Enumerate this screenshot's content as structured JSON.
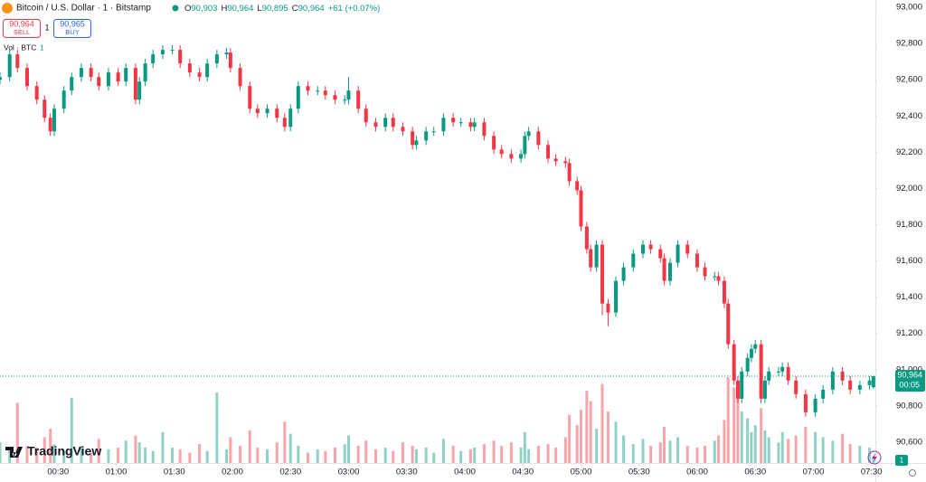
{
  "chart_data": {
    "type": "candlestick",
    "title": "Bitcoin / U.S. Dollar · 1 · Bitstamp",
    "ohlc_legend": [
      {
        "label": "O",
        "value": "90,903"
      },
      {
        "label": "H",
        "value": "90,964"
      },
      {
        "label": "L",
        "value": "90,895"
      },
      {
        "label": "C",
        "value": "90,964"
      }
    ],
    "change": "+61 (+0.07%)",
    "sell": {
      "price": "90,964",
      "label": "SELL"
    },
    "spread": "1",
    "buy": {
      "price": "90,965",
      "label": "BUY"
    },
    "volume_label": "Vol · BTC",
    "volume_legend_value": "1",
    "last_price": {
      "value": 90964,
      "label": "90,964"
    },
    "countdown": "00:05",
    "scale_badge": "1",
    "brand": "TradingView",
    "up_color": "#089981",
    "down_color": "#f23645",
    "xlim": [
      0,
      452
    ],
    "xticks": [
      {
        "value": 30,
        "label": "00:30"
      },
      {
        "value": 60,
        "label": "01:00"
      },
      {
        "value": 90,
        "label": "01:30"
      },
      {
        "value": 120,
        "label": "02:00"
      },
      {
        "value": 150,
        "label": "02:30"
      },
      {
        "value": 180,
        "label": "03:00"
      },
      {
        "value": 210,
        "label": "03:30"
      },
      {
        "value": 240,
        "label": "04:00"
      },
      {
        "value": 270,
        "label": "04:30"
      },
      {
        "value": 300,
        "label": "05:00"
      },
      {
        "value": 330,
        "label": "05:30"
      },
      {
        "value": 360,
        "label": "06:00"
      },
      {
        "value": 390,
        "label": "06:30"
      },
      {
        "value": 420,
        "label": "07:00"
      },
      {
        "value": 450,
        "label": "07:30"
      }
    ],
    "ylim": [
      90485,
      93040
    ],
    "yticks": [
      {
        "value": 90600,
        "label": "90,600"
      },
      {
        "value": 90800,
        "label": "90,800"
      },
      {
        "value": 91000,
        "label": "91,000"
      },
      {
        "value": 91200,
        "label": "91,200"
      },
      {
        "value": 91400,
        "label": "91,400"
      },
      {
        "value": 91600,
        "label": "91,600"
      },
      {
        "value": 91800,
        "label": "91,800"
      },
      {
        "value": 92000,
        "label": "92,000"
      },
      {
        "value": 92200,
        "label": "92,200"
      },
      {
        "value": 92400,
        "label": "92,400"
      },
      {
        "value": 92600,
        "label": "92,600"
      },
      {
        "value": 92800,
        "label": "92,800"
      },
      {
        "value": 93000,
        "label": "93,000"
      }
    ],
    "x": [
      0,
      5,
      9,
      14,
      19,
      23,
      26,
      28,
      33,
      37,
      42,
      47,
      51,
      56,
      61,
      65,
      70,
      72,
      75,
      79,
      84,
      89,
      93,
      98,
      103,
      107,
      112,
      117,
      119,
      124,
      129,
      133,
      138,
      143,
      147,
      150,
      154,
      159,
      164,
      168,
      173,
      178,
      180,
      185,
      189,
      194,
      199,
      203,
      208,
      213,
      215,
      220,
      224,
      229,
      234,
      238,
      243,
      245,
      250,
      255,
      259,
      264,
      269,
      271,
      273,
      278,
      283,
      287,
      292,
      294,
      298,
      300,
      303,
      305,
      308,
      311,
      314,
      318,
      322,
      327,
      332,
      336,
      341,
      343,
      346,
      350,
      355,
      360,
      364,
      369,
      371,
      374,
      376,
      379,
      381,
      383,
      386,
      388,
      390,
      393,
      395,
      397,
      402,
      404,
      407,
      411,
      416,
      421,
      425,
      430,
      435,
      439,
      444,
      449,
      451
    ],
    "open": [
      92600,
      92615,
      92740,
      92665,
      92565,
      92490,
      92390,
      92315,
      92440,
      92540,
      92615,
      92665,
      92615,
      92565,
      92640,
      92590,
      92665,
      92490,
      92590,
      92690,
      92740,
      92765,
      92765,
      92690,
      92640,
      92615,
      92690,
      92740,
      92750,
      92665,
      92565,
      92440,
      92415,
      92440,
      92390,
      92340,
      92440,
      92565,
      92540,
      92540,
      92515,
      92490,
      92490,
      92540,
      92440,
      92365,
      92340,
      92390,
      92340,
      92315,
      92240,
      92265,
      92315,
      92315,
      92390,
      92365,
      92365,
      92340,
      92365,
      92290,
      92215,
      92190,
      92165,
      92190,
      92290,
      92315,
      92240,
      92165,
      92150,
      92140,
      92040,
      91990,
      91790,
      91665,
      91565,
      91690,
      91365,
      91315,
      91490,
      91565,
      91640,
      91690,
      91665,
      91615,
      91490,
      91590,
      91690,
      91640,
      91565,
      91515,
      91515,
      91490,
      91365,
      91140,
      90940,
      90840,
      90990,
      91065,
      91115,
      91140,
      90840,
      90940,
      90990,
      90990,
      91015,
      90940,
      90865,
      90765,
      90840,
      90890,
      90990,
      90940,
      90890,
      90915,
      90903
    ],
    "high": [
      92640,
      92765,
      92765,
      92690,
      92590,
      92515,
      92415,
      92465,
      92565,
      92640,
      92690,
      92690,
      92640,
      92665,
      92665,
      92690,
      92690,
      92615,
      92715,
      92765,
      92790,
      92790,
      92790,
      92715,
      92665,
      92715,
      92765,
      92775,
      92775,
      92690,
      92590,
      92465,
      92465,
      92465,
      92415,
      92465,
      92590,
      92590,
      92565,
      92565,
      92540,
      92515,
      92615,
      92565,
      92465,
      92390,
      92415,
      92415,
      92365,
      92340,
      92290,
      92340,
      92340,
      92415,
      92415,
      92390,
      92390,
      92390,
      92390,
      92315,
      92240,
      92215,
      92215,
      92315,
      92340,
      92340,
      92265,
      92190,
      92175,
      92165,
      92065,
      92015,
      91815,
      91690,
      91715,
      91715,
      91390,
      91515,
      91590,
      91665,
      91715,
      91715,
      91690,
      91640,
      91615,
      91715,
      91715,
      91665,
      91590,
      91540,
      91540,
      91515,
      91390,
      91165,
      90965,
      91015,
      91090,
      91140,
      91165,
      91165,
      90965,
      91015,
      91015,
      91040,
      91040,
      90965,
      90890,
      90865,
      90915,
      91015,
      91015,
      90965,
      90940,
      90965,
      90964
    ],
    "low": [
      92575,
      92590,
      92640,
      92540,
      92465,
      92365,
      92290,
      92290,
      92415,
      92515,
      92590,
      92590,
      92540,
      92540,
      92565,
      92565,
      92465,
      92465,
      92565,
      92665,
      92715,
      92740,
      92665,
      92615,
      92590,
      92590,
      92665,
      92715,
      92640,
      92540,
      92415,
      92390,
      92390,
      92365,
      92315,
      92315,
      92415,
      92515,
      92515,
      92490,
      92465,
      92465,
      92465,
      92415,
      92340,
      92315,
      92315,
      92315,
      92290,
      92215,
      92215,
      92240,
      92290,
      92290,
      92340,
      92340,
      92315,
      92315,
      92265,
      92190,
      92165,
      92140,
      92140,
      92165,
      92265,
      92215,
      92140,
      92125,
      92115,
      92015,
      91965,
      91765,
      91640,
      91540,
      91540,
      91300,
      91240,
      91290,
      91465,
      91540,
      91615,
      91640,
      91590,
      91465,
      91465,
      91565,
      91615,
      91540,
      91490,
      91490,
      91465,
      91340,
      91115,
      90915,
      90815,
      90815,
      90965,
      91040,
      91090,
      90815,
      90815,
      90915,
      90965,
      90965,
      90915,
      90840,
      90740,
      90740,
      90815,
      90865,
      90915,
      90865,
      90865,
      90890,
      90895
    ],
    "close": [
      92615,
      92740,
      92665,
      92565,
      92490,
      92390,
      92315,
      92440,
      92540,
      92615,
      92665,
      92615,
      92565,
      92640,
      92590,
      92665,
      92490,
      92590,
      92690,
      92740,
      92765,
      92765,
      92690,
      92640,
      92615,
      92690,
      92740,
      92750,
      92665,
      92565,
      92440,
      92415,
      92440,
      92390,
      92340,
      92440,
      92565,
      92540,
      92540,
      92515,
      92490,
      92490,
      92540,
      92440,
      92365,
      92340,
      92390,
      92340,
      92315,
      92240,
      92265,
      92315,
      92315,
      92390,
      92365,
      92365,
      92340,
      92365,
      92290,
      92215,
      92190,
      92165,
      92190,
      92290,
      92315,
      92240,
      92165,
      92150,
      92140,
      92040,
      91990,
      91790,
      91665,
      91565,
      91690,
      91365,
      91315,
      91490,
      91565,
      91640,
      91690,
      91665,
      91615,
      91490,
      91590,
      91690,
      91640,
      91565,
      91515,
      91515,
      91490,
      91365,
      91140,
      90940,
      90840,
      90990,
      91065,
      91115,
      91140,
      90840,
      90940,
      90990,
      90990,
      91015,
      90940,
      90865,
      90765,
      90840,
      90890,
      90990,
      90940,
      90890,
      90915,
      90940,
      90964
    ],
    "volume": [
      1.2,
      0.8,
      3.5,
      1.0,
      0.9,
      1.5,
      2.0,
      1.1,
      0.7,
      3.8,
      1.0,
      0.6,
      1.4,
      0.8,
      0.9,
      1.3,
      1.6,
      1.2,
      0.9,
      0.7,
      1.8,
      0.9,
      0.8,
      0.6,
      1.1,
      0.7,
      4.1,
      0.8,
      1.5,
      1.0,
      1.9,
      0.9,
      0.8,
      1.2,
      2.4,
      1.7,
      1.0,
      0.6,
      0.8,
      0.7,
      0.9,
      1.1,
      1.6,
      1.0,
      1.3,
      0.8,
      0.9,
      0.7,
      1.2,
      1.0,
      0.8,
      0.9,
      0.6,
      1.4,
      1.0,
      0.7,
      0.8,
      0.9,
      1.1,
      1.3,
      1.0,
      1.2,
      0.9,
      1.8,
      0.8,
      1.0,
      1.1,
      0.9,
      1.5,
      2.8,
      2.2,
      3.1,
      4.2,
      3.6,
      2.0,
      4.6,
      3.0,
      2.4,
      1.6,
      1.1,
      1.4,
      1.0,
      1.2,
      2.1,
      1.3,
      1.5,
      1.0,
      0.9,
      1.0,
      1.3,
      1.6,
      2.5,
      5.0,
      4.4,
      3.8,
      3.0,
      2.6,
      1.8,
      2.2,
      3.2,
      1.9,
      1.5,
      1.2,
      1.8,
      1.4,
      1.6,
      2.1,
      1.8,
      1.5,
      1.3,
      1.7,
      1.1,
      1.0,
      0.9,
      0.3
    ]
  }
}
